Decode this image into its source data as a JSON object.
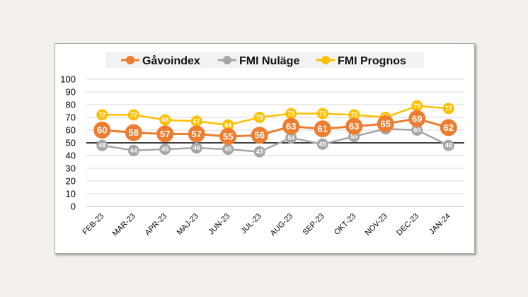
{
  "chart_data": {
    "type": "line",
    "categories": [
      "FEB-23",
      "MAR-23",
      "APR-23",
      "MAJ-23",
      "JUN-23",
      "JUL-23",
      "AUG-23",
      "SEP-23",
      "OKT-23",
      "NOV-23",
      "DEC-23",
      "JAN-24"
    ],
    "series": [
      {
        "name": "Gåvoindex",
        "color": "#ed7d31",
        "values": [
          60,
          58,
          57,
          57,
          55,
          56,
          63,
          61,
          63,
          65,
          69,
          62
        ]
      },
      {
        "name": "FMI Nuläge",
        "color": "#a5a5a5",
        "values": [
          48,
          44,
          45,
          46,
          45,
          43,
          54,
          49,
          55,
          61,
          60,
          48
        ]
      },
      {
        "name": "FMI Prognos",
        "color": "#ffc000",
        "values": [
          72,
          72,
          68,
          67,
          64,
          70,
          73,
          73,
          72,
          70,
          79,
          77
        ]
      }
    ],
    "yticks": [
      0,
      10,
      20,
      30,
      40,
      50,
      60,
      70,
      80,
      90,
      100
    ],
    "ylim": [
      0,
      100
    ],
    "reference_line": 50,
    "legend_position": "top",
    "grid": true
  }
}
